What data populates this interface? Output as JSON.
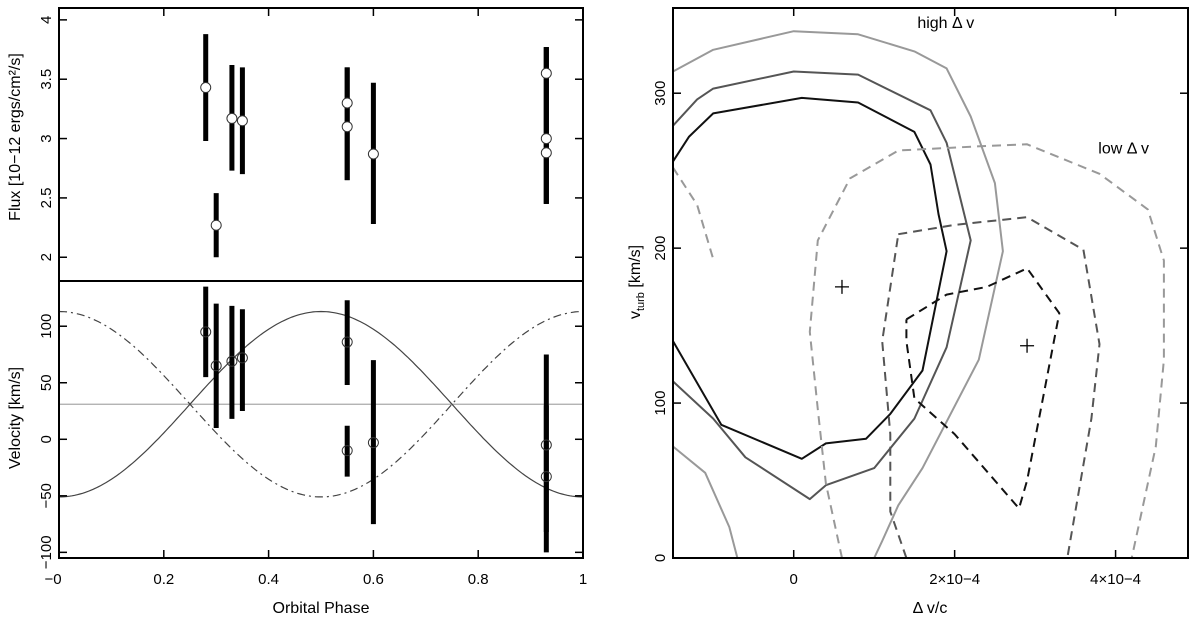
{
  "chart_data": [
    {
      "panel": "flux",
      "type": "scatter",
      "ylabel": "Flux [10−12 ergs/cm²/s]",
      "xlim": [
        0,
        1
      ],
      "ylim": [
        1.8,
        4.1
      ],
      "yticks": [
        "2",
        "2.5",
        "3",
        "3.5",
        "4"
      ],
      "series": [
        {
          "points": [
            {
              "x": 0.28,
              "y": 3.43,
              "lo": 2.98,
              "hi": 3.88
            },
            {
              "x": 0.3,
              "y": 2.27,
              "lo": 2.0,
              "hi": 2.54
            },
            {
              "x": 0.33,
              "y": 3.17,
              "lo": 2.73,
              "hi": 3.62
            },
            {
              "x": 0.35,
              "y": 3.15,
              "lo": 2.7,
              "hi": 3.6
            },
            {
              "x": 0.55,
              "y": 3.3,
              "lo": 2.65,
              "hi": 3.6
            },
            {
              "x": 0.55,
              "y": 3.1,
              "lo": 2.65,
              "hi": 3.6
            },
            {
              "x": 0.6,
              "y": 2.87,
              "lo": 2.28,
              "hi": 3.47
            },
            {
              "x": 0.93,
              "y": 3.55,
              "lo": 2.45,
              "hi": 3.77
            },
            {
              "x": 0.93,
              "y": 3.0,
              "lo": 2.45,
              "hi": 3.77
            },
            {
              "x": 0.93,
              "y": 2.88,
              "lo": 2.45,
              "hi": 3.77
            }
          ]
        }
      ]
    },
    {
      "panel": "velocity",
      "type": "scatter",
      "xlabel": "Orbital Phase",
      "ylabel": "Velocity [km/s]",
      "xlim": [
        0,
        1
      ],
      "ylim": [
        -105,
        140
      ],
      "xticks": [
        "−0",
        "0.2",
        "0.4",
        "0.6",
        "0.8",
        "1"
      ],
      "xtick_values": [
        0,
        0.2,
        0.4,
        0.6,
        0.8,
        1
      ],
      "yticks": [
        "−100",
        "−50",
        "0",
        "50",
        "100"
      ],
      "series": [
        {
          "points": [
            {
              "x": 0.28,
              "y": 95,
              "lo": 55,
              "hi": 135
            },
            {
              "x": 0.3,
              "y": 65,
              "lo": 10,
              "hi": 120
            },
            {
              "x": 0.33,
              "y": 69,
              "lo": 18,
              "hi": 118
            },
            {
              "x": 0.35,
              "y": 72,
              "lo": 25,
              "hi": 115
            },
            {
              "x": 0.55,
              "y": 86,
              "lo": 48,
              "hi": 123
            },
            {
              "x": 0.55,
              "y": -10,
              "lo": -33,
              "hi": 12
            },
            {
              "x": 0.6,
              "y": -3,
              "lo": -75,
              "hi": 70
            },
            {
              "x": 0.93,
              "y": -5,
              "lo": -82,
              "hi": 75
            },
            {
              "x": 0.93,
              "y": -33,
              "lo": -100,
              "hi": 30
            }
          ]
        }
      ],
      "model_curves": {
        "solid": {
          "mean": 31,
          "amplitude": 82,
          "phase_of_max": 0.5
        },
        "dashed": {
          "mean": 31,
          "amplitude": 82,
          "phase_of_max": 0.0
        },
        "systemic": 31
      }
    },
    {
      "panel": "contours",
      "type": "line",
      "xlabel": "Δ v/c",
      "ylabel_main": "v",
      "ylabel_sub": "turb",
      "ylabel_tail": " [km/s]",
      "xlim": [
        -0.00015,
        0.00049
      ],
      "ylim": [
        0,
        355
      ],
      "xticks": [
        "0",
        "2×10−4",
        "4×10−4"
      ],
      "xtick_values": [
        0,
        0.0002,
        0.0004
      ],
      "yticks": [
        "0",
        "100",
        "200",
        "300"
      ],
      "ytick_values": [
        0,
        100,
        200,
        300
      ],
      "annotations": [
        {
          "text": "high Δ v",
          "x": 0.000189,
          "y": 342
        },
        {
          "text": "low Δ v",
          "x": 0.00041,
          "y": 261
        }
      ],
      "best_fits": [
        {
          "x": 6e-05,
          "y": 175
        },
        {
          "x": 0.00029,
          "y": 137
        }
      ],
      "series": [
        {
          "group": "high",
          "level": 1,
          "color": "#111111",
          "dash": "solid",
          "points": [
            [
              -0.00015,
              256
            ],
            [
              -0.00013,
              272
            ],
            [
              -0.0001,
              287
            ],
            [
              1e-05,
              297
            ],
            [
              8e-05,
              294
            ],
            [
              0.00015,
              275
            ],
            [
              0.00017,
              254
            ],
            [
              0.00018,
              222
            ],
            [
              0.00019,
              198
            ],
            [
              0.00016,
              121
            ],
            [
              0.00012,
              93
            ],
            [
              9e-05,
              77
            ],
            [
              4e-05,
              74
            ],
            [
              1e-05,
              64
            ],
            [
              -9e-05,
              86
            ],
            [
              -0.00015,
              140
            ]
          ]
        },
        {
          "group": "high",
          "level": 2,
          "color": "#555555",
          "dash": "solid",
          "points": [
            [
              -0.00015,
              279
            ],
            [
              -0.00012,
              296
            ],
            [
              -0.0001,
              303
            ],
            [
              0.0,
              314
            ],
            [
              8e-05,
              312
            ],
            [
              0.00017,
              289
            ],
            [
              0.00019,
              268
            ],
            [
              0.00022,
              205
            ],
            [
              0.00019,
              136
            ],
            [
              0.00015,
              90
            ],
            [
              0.0001,
              58
            ],
            [
              4e-05,
              47
            ],
            [
              2e-05,
              38
            ],
            [
              -6e-05,
              65
            ],
            [
              -0.0001,
              90
            ],
            [
              -0.00015,
              114
            ]
          ]
        },
        {
          "group": "high",
          "level": 3,
          "color": "#999999",
          "dash": "solid",
          "points": [
            [
              -0.00015,
              314
            ],
            [
              -0.0001,
              328
            ],
            [
              0.0,
              340
            ],
            [
              8e-05,
              338
            ],
            [
              0.00015,
              327
            ],
            [
              0.00019,
              316
            ],
            [
              0.00022,
              285
            ],
            [
              0.00025,
              242
            ],
            [
              0.00026,
              198
            ],
            [
              0.00023,
              128
            ],
            [
              0.00016,
              58
            ],
            [
              0.00013,
              34
            ],
            [
              0.00011,
              11
            ],
            [
              0.0001,
              0
            ]
          ]
        },
        {
          "group": "high",
          "level": 3,
          "color": "#999999",
          "dash": "solid",
          "points": [
            [
              -0.00015,
              72
            ],
            [
              -0.00011,
              55
            ],
            [
              -8e-05,
              20
            ],
            [
              -7e-05,
              0
            ]
          ]
        },
        {
          "group": "low",
          "level": 1,
          "color": "#111111",
          "dash": "dashed",
          "points": [
            [
              0.00014,
              154
            ],
            [
              0.00019,
              170
            ],
            [
              0.00024,
              175
            ],
            [
              0.00029,
              187
            ],
            [
              0.00033,
              158
            ],
            [
              0.00031,
              104
            ],
            [
              0.00029,
              50
            ],
            [
              0.00028,
              32
            ],
            [
              0.0002,
              80
            ],
            [
              0.00015,
              103
            ],
            [
              0.00014,
              140
            ],
            [
              0.00014,
              154
            ]
          ]
        },
        {
          "group": "low",
          "level": 2,
          "color": "#555555",
          "dash": "dashed",
          "points": [
            [
              0.00013,
              209
            ],
            [
              0.0002,
              215
            ],
            [
              0.00029,
              220
            ],
            [
              0.00036,
              199
            ],
            [
              0.00038,
              138
            ],
            [
              0.00037,
              90
            ],
            [
              0.00034,
              0
            ]
          ]
        },
        {
          "group": "low",
          "level": 2,
          "color": "#555555",
          "dash": "dashed",
          "points": [
            [
              0.00014,
              0
            ],
            [
              0.00012,
              30
            ],
            [
              0.00012,
              80
            ],
            [
              0.00011,
              140
            ],
            [
              0.00013,
              209
            ]
          ]
        },
        {
          "group": "low",
          "level": 3,
          "color": "#999999",
          "dash": "dashed",
          "points": [
            [
              6e-05,
              0
            ],
            [
              4e-05,
              48
            ],
            [
              3e-05,
              96
            ],
            [
              2e-05,
              146
            ],
            [
              3e-05,
              205
            ],
            [
              7e-05,
              245
            ],
            [
              0.00013,
              263
            ],
            [
              0.00024,
              266
            ],
            [
              0.00029,
              267
            ],
            [
              0.00038,
              248
            ],
            [
              0.00044,
              225
            ],
            [
              0.00046,
              192
            ],
            [
              0.00046,
              128
            ],
            [
              0.00045,
              72
            ],
            [
              0.00042,
              0
            ]
          ]
        },
        {
          "group": "low",
          "level": 3,
          "color": "#999999",
          "dash": "dashed",
          "points": [
            [
              -0.00015,
              252
            ],
            [
              -0.00012,
              228
            ],
            [
              -0.0001,
              193
            ]
          ]
        }
      ]
    }
  ]
}
